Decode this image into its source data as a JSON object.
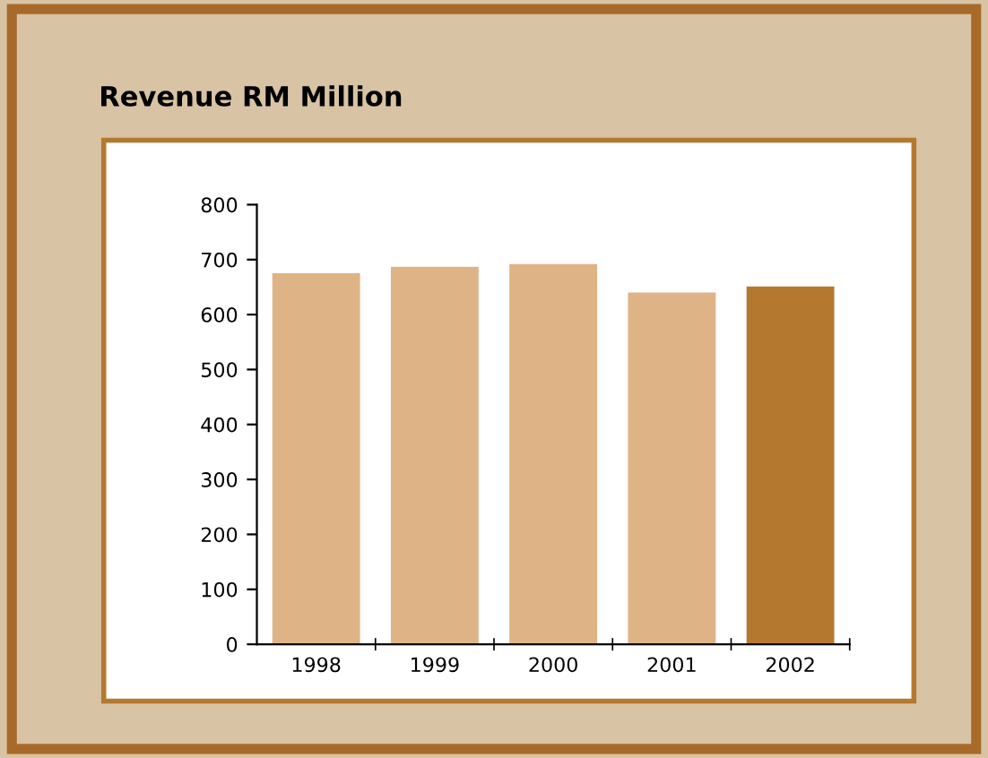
{
  "chart_data": {
    "type": "bar",
    "title": "Revenue RM Million",
    "categories": [
      "1998",
      "1999",
      "2000",
      "2001",
      "2002"
    ],
    "values": [
      675,
      687,
      692,
      640,
      651
    ],
    "colors": [
      "#deb385",
      "#deb385",
      "#deb385",
      "#deb385",
      "#b5782f"
    ],
    "ylim": [
      0,
      800
    ],
    "yticks": [
      0,
      100,
      200,
      300,
      400,
      500,
      600,
      700,
      800
    ],
    "grid": false
  }
}
